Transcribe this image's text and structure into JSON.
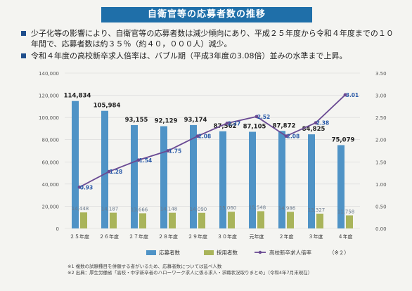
{
  "title": "自衛官等の応募者数の推移",
  "bullets": [
    "少子化等の影響により、自衛官等の応募者数は減少傾向にあり、平成２５年度から令和４年度までの１０年間で、応募者数は約３５％（約４０，０００人）減少。",
    "令和４年度の高校新卒求人倍率は、バブル期（平成3年度の3.08倍）並みの水準まで上昇。"
  ],
  "notes": [
    "※1 複数の試験種目を併願する者がいるため、応募者数については延べ人数",
    "※2 出典：厚生労働省「高校・中学新卒者のハローワーク求人に係る求人・求職状況取りまとめ」（令和4年7月末現在）"
  ],
  "chart_data": {
    "type": "bar",
    "categories": [
      "２５年度",
      "２６年度",
      "２７年度",
      "２８年度",
      "２９年度",
      "３０年度",
      "元年度",
      "２年度",
      "３年度",
      "４年度"
    ],
    "series": [
      {
        "name": "応募者数",
        "type": "bar",
        "axis": "left",
        "color": "#4f93c6",
        "values": [
          114834,
          105984,
          93155,
          92129,
          93174,
          87562,
          87105,
          87872,
          84825,
          75079
        ],
        "labels": [
          "114,834",
          "105,984",
          "93,155",
          "92,129",
          "93,174",
          "87,562",
          "87,105",
          "87,872",
          "84,825",
          "75,079"
        ]
      },
      {
        "name": "採用者数",
        "type": "bar",
        "axis": "left",
        "color": "#a9b45a",
        "values": [
          14448,
          14187,
          13666,
          14148,
          14090,
          15060,
          15548,
          14986,
          13327,
          11758
        ],
        "labels": [
          "14,448",
          "14,187",
          "13,666",
          "14,148",
          "14,090",
          "15,060",
          "15,548",
          "14,986",
          "13,327",
          "11,758"
        ]
      },
      {
        "name": "高校新卒求人倍率",
        "type": "line",
        "axis": "right",
        "color": "#6a4a93",
        "values": [
          0.93,
          1.28,
          1.54,
          1.75,
          2.08,
          2.37,
          2.52,
          2.08,
          2.38,
          3.01
        ],
        "labels": [
          "0.93",
          "1.28",
          "1.54",
          "1.75",
          "2.08",
          "2.37",
          "2.52",
          "2.08",
          "2.38",
          "3.01"
        ]
      }
    ],
    "legend_suffix": "（※２）",
    "y_left": {
      "lim": [
        0,
        140000
      ],
      "ticks": [
        "0",
        "20,000",
        "40,000",
        "60,000",
        "80,000",
        "100,000",
        "120,000",
        "140,000"
      ]
    },
    "y_right": {
      "lim": [
        0,
        3.5
      ],
      "ticks": [
        "0.00",
        "0.50",
        "1.00",
        "1.50",
        "2.00",
        "2.50",
        "3.00",
        "3.50"
      ]
    },
    "grid": true,
    "legend_position": "bottom"
  }
}
